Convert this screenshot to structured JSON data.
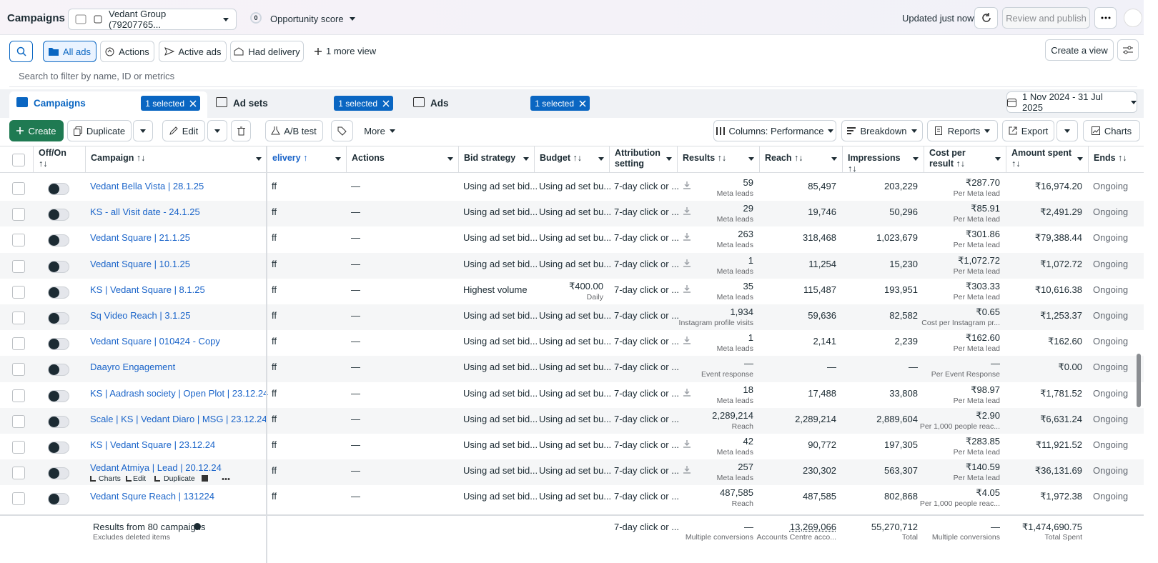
{
  "header": {
    "title": "Campaigns",
    "account": "Vedant Group (79207765...",
    "score_badge": "0",
    "score": "Opportunity score",
    "updated": "Updated just now",
    "review": "Review and publish"
  },
  "views": {
    "tabs": [
      "All ads",
      "Actions",
      "Active ads",
      "Had delivery"
    ],
    "more": "1 more view",
    "create": "Create a view",
    "search": "Search to filter by name, ID or metrics"
  },
  "levels": [
    {
      "label": "Campaigns",
      "selected": "1 selected"
    },
    {
      "label": "Ad sets",
      "selected": "1 selected"
    },
    {
      "label": "Ads",
      "selected": "1 selected"
    }
  ],
  "date_range": "1 Nov 2024 - 31 Jul 2025",
  "toolbar": {
    "create": "Create",
    "duplicate": "Duplicate",
    "edit": "Edit",
    "ab_test": "A/B test",
    "more": "More",
    "columns": "Columns: Performance",
    "breakdown": "Breakdown",
    "reports": "Reports",
    "export": "Export",
    "charts": "Charts"
  },
  "table": {
    "columns": [
      "Off/On ↑↓",
      "Campaign ↑↓",
      "elivery ↑",
      "Actions",
      "Bid strategy",
      "Budget ↑↓",
      "Attribution setting",
      "Results ↑↓",
      "Reach ↑↓",
      "Impressions ↑↓",
      "Cost per result ↑↓",
      "Amount spent ↑↓",
      "Ends ↑↓"
    ],
    "rows": [
      {
        "name": "Vedant Bella Vista | 28.1.25",
        "delivery": "ff",
        "actions": "—",
        "bid": "Using ad set bid...",
        "budget": "Using ad set bu...",
        "attribution": "7-day click or ...",
        "results": "59",
        "results_sub": "Meta leads",
        "reach": "85,497",
        "impressions": "203,229",
        "cost": "₹287.70",
        "cost_sub": "Per Meta lead",
        "spent": "₹16,974.20",
        "ends": "Ongoing"
      },
      {
        "name": "KS - all Visit date - 24.1.25",
        "delivery": "ff",
        "actions": "—",
        "bid": "Using ad set bid...",
        "budget": "Using ad set bu...",
        "attribution": "7-day click or ...",
        "results": "29",
        "results_sub": "Meta leads",
        "reach": "19,746",
        "impressions": "50,296",
        "cost": "₹85.91",
        "cost_sub": "Per Meta lead",
        "spent": "₹2,491.29",
        "ends": "Ongoing"
      },
      {
        "name": "Vedant Square | 21.1.25",
        "delivery": "ff",
        "actions": "—",
        "bid": "Using ad set bid...",
        "budget": "Using ad set bu...",
        "attribution": "7-day click or ...",
        "results": "263",
        "results_sub": "Meta leads",
        "reach": "318,468",
        "impressions": "1,023,679",
        "cost": "₹301.86",
        "cost_sub": "Per Meta lead",
        "spent": "₹79,388.44",
        "ends": "Ongoing"
      },
      {
        "name": "Vedant Square | 10.1.25",
        "delivery": "ff",
        "actions": "—",
        "bid": "Using ad set bid...",
        "budget": "Using ad set bu...",
        "attribution": "7-day click or ...",
        "results": "1",
        "results_sub": "Meta leads",
        "reach": "11,254",
        "impressions": "15,230",
        "cost": "₹1,072.72",
        "cost_sub": "Per Meta lead",
        "spent": "₹1,072.72",
        "ends": "Ongoing"
      },
      {
        "name": "KS | Vedant Square | 8.1.25",
        "delivery": "ff",
        "actions": "—",
        "bid": "Highest volume",
        "budget": "₹400.00",
        "budget_sub": "Daily",
        "attribution": "7-day click or ...",
        "results": "35",
        "results_sub": "Meta leads",
        "reach": "115,487",
        "impressions": "193,951",
        "cost": "₹303.33",
        "cost_sub": "Per Meta lead",
        "spent": "₹10,616.38",
        "ends": "Ongoing"
      },
      {
        "name": "Sq Video Reach | 3.1.25",
        "delivery": "ff",
        "actions": "—",
        "bid": "Using ad set bid...",
        "budget": "Using ad set bu...",
        "attribution": "7-day click or ...",
        "results": "1,934",
        "results_sub": "Instagram profile visits",
        "reach": "59,636",
        "impressions": "82,582",
        "cost": "₹0.65",
        "cost_sub": "Cost per Instagram pr...",
        "spent": "₹1,253.37",
        "ends": "Ongoing"
      },
      {
        "name": "Vedant Square | 010424 - Copy",
        "delivery": "ff",
        "actions": "—",
        "bid": "Using ad set bid...",
        "budget": "Using ad set bu...",
        "attribution": "7-day click or ...",
        "results": "1",
        "results_sub": "Meta leads",
        "reach": "2,141",
        "impressions": "2,239",
        "cost": "₹162.60",
        "cost_sub": "Per Meta lead",
        "spent": "₹162.60",
        "ends": "Ongoing"
      },
      {
        "name": "Daayro Engagement",
        "delivery": "ff",
        "actions": "—",
        "bid": "Using ad set bid...",
        "budget": "Using ad set bu...",
        "attribution": "7-day click or ...",
        "results": "—",
        "results_sub": "Event response",
        "reach": "—",
        "impressions": "—",
        "cost": "—",
        "cost_sub": "Per Event Response",
        "spent": "₹0.00",
        "ends": "Ongoing"
      },
      {
        "name": "KS | Aadrash society | Open Plot | 23.12.24",
        "delivery": "ff",
        "actions": "—",
        "bid": "Using ad set bid...",
        "budget": "Using ad set bu...",
        "attribution": "7-day click or ...",
        "results": "18",
        "results_sub": "Meta leads",
        "reach": "17,488",
        "impressions": "33,808",
        "cost": "₹98.97",
        "cost_sub": "Per Meta lead",
        "spent": "₹1,781.52",
        "ends": "Ongoing"
      },
      {
        "name": "Scale | KS | Vedant Diaro | MSG | 23.12.24",
        "delivery": "ff",
        "actions": "—",
        "bid": "Using ad set bid...",
        "budget": "Using ad set bu...",
        "attribution": "7-day click or ...",
        "results": "2,289,214",
        "results_sub": "Reach",
        "reach": "2,289,214",
        "impressions": "2,889,604",
        "cost": "₹2.90",
        "cost_sub": "Per 1,000 people reac...",
        "spent": "₹6,631.24",
        "ends": "Ongoing"
      },
      {
        "name": "KS | Vedant Square | 23.12.24",
        "delivery": "ff",
        "actions": "—",
        "bid": "Using ad set bid...",
        "budget": "Using ad set bu...",
        "attribution": "7-day click or ...",
        "results": "42",
        "results_sub": "Meta leads",
        "reach": "90,772",
        "impressions": "197,305",
        "cost": "₹283.85",
        "cost_sub": "Per Meta lead",
        "spent": "₹11,921.52",
        "ends": "Ongoing"
      },
      {
        "name": "Vedant Atmiya | Lead | 20.12.24",
        "hover_actions": [
          "Charts",
          "Edit",
          "Duplicate"
        ],
        "delivery": "ff",
        "actions": "—",
        "bid": "Using ad set bid...",
        "budget": "Using ad set bu...",
        "attribution": "7-day click or ...",
        "results": "257",
        "results_sub": "Meta leads",
        "reach": "230,302",
        "impressions": "563,307",
        "cost": "₹140.59",
        "cost_sub": "Per Meta lead",
        "spent": "₹36,131.69",
        "ends": "Ongoing"
      },
      {
        "name": "Vedant Squre Reach | 131224",
        "delivery": "ff",
        "actions": "—",
        "bid": "Using ad set bid...",
        "budget": "Using ad set bu...",
        "attribution": "7-day click or ...",
        "results": "487,585",
        "results_sub": "Reach",
        "reach": "487,585",
        "impressions": "802,868",
        "cost": "₹4.05",
        "cost_sub": "Per 1,000 people reac...",
        "spent": "₹1,972.38",
        "ends": "Ongoing"
      }
    ],
    "footer": {
      "summary": "Results from 80 campaigns",
      "note": "Excludes deleted items",
      "attribution": "7-day click or ...",
      "results": "—",
      "results_sub": "Multiple conversions",
      "reach": "13,269,066",
      "reach_sub": "Accounts Centre acco...",
      "impressions": "55,270,712",
      "impressions_sub": "Total",
      "cost": "—",
      "cost_sub": "Multiple conversions",
      "spent": "₹1,474,690.75",
      "spent_sub": "Total Spent"
    }
  }
}
